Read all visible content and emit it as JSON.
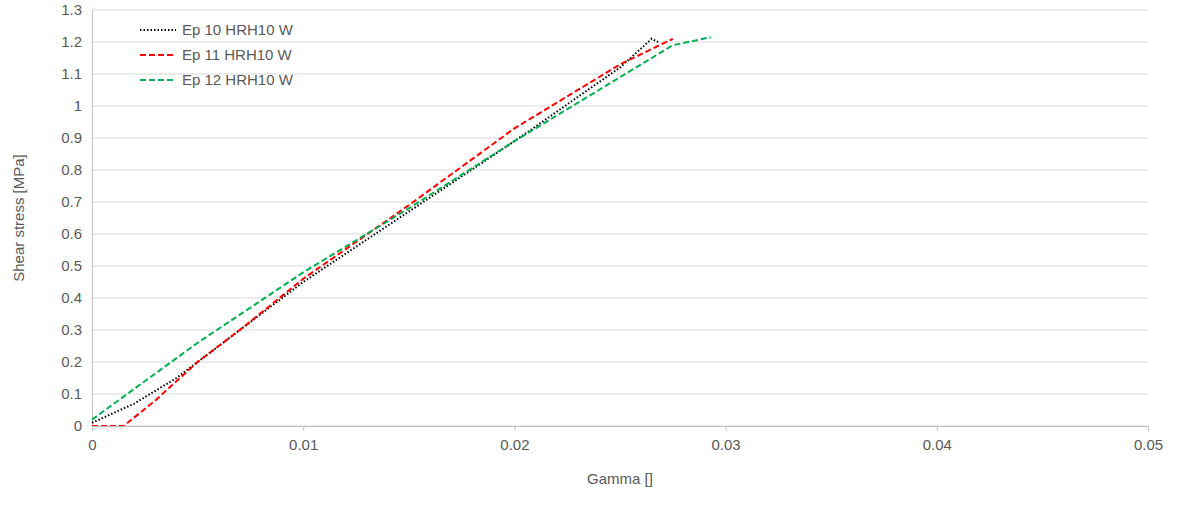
{
  "chart_data": {
    "type": "line",
    "x_label": "Gamma []",
    "y_label": "Shear stress [MPa]",
    "xlim": [
      0,
      0.05
    ],
    "xticks": [
      0,
      0.01,
      0.02,
      0.03,
      0.04,
      0.05
    ],
    "ylim": [
      0,
      1.3
    ],
    "yticks": [
      0,
      0.1,
      0.2,
      0.3,
      0.4,
      0.5,
      0.6,
      0.7,
      0.8,
      0.9,
      1,
      1.1,
      1.2,
      1.3
    ],
    "grid": true,
    "legend": "top-left",
    "series": [
      {
        "name": "Ep 10 HRH10 W",
        "color": "#000000",
        "line_style": "dotted",
        "x": [
          0,
          0.002,
          0.004,
          0.006,
          0.01,
          0.015,
          0.02,
          0.025,
          0.0265,
          0.0268
        ],
        "values": [
          0.01,
          0.07,
          0.15,
          0.25,
          0.45,
          0.67,
          0.89,
          1.12,
          1.21,
          1.2
        ]
      },
      {
        "name": "Ep 11 HRH10 W",
        "color": "#ff0000",
        "line_style": "dashed",
        "x": [
          0,
          0.0015,
          0.003,
          0.005,
          0.007,
          0.01,
          0.015,
          0.02,
          0.025,
          0.0275
        ],
        "values": [
          0,
          0,
          0.08,
          0.2,
          0.3,
          0.46,
          0.69,
          0.93,
          1.13,
          1.21
        ]
      },
      {
        "name": "Ep 12 HRH10 W",
        "color": "#00b050",
        "line_style": "dashed",
        "x": [
          0,
          0.005,
          0.01,
          0.015,
          0.02,
          0.025,
          0.0275,
          0.0293
        ],
        "values": [
          0.02,
          0.26,
          0.48,
          0.68,
          0.89,
          1.09,
          1.19,
          1.215
        ]
      }
    ]
  }
}
